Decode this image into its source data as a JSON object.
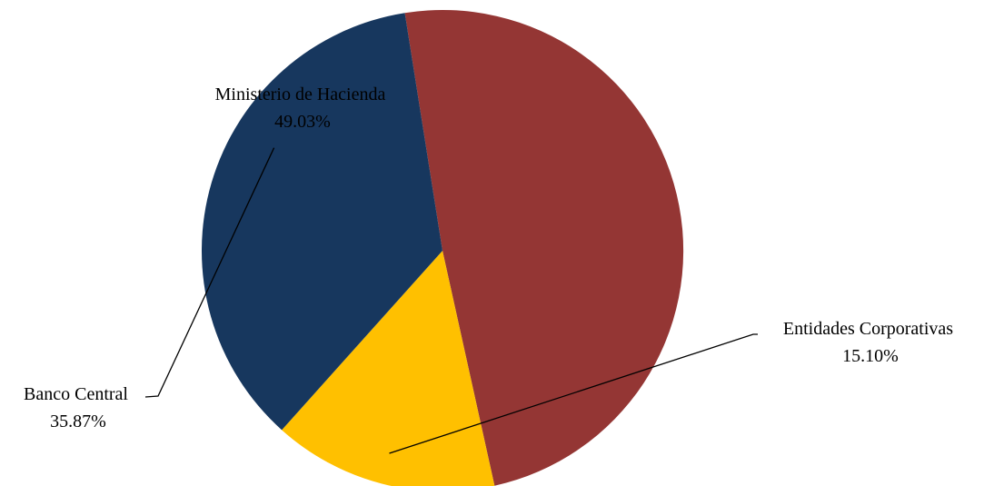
{
  "chart_data": {
    "type": "pie",
    "title": "",
    "slices": [
      {
        "label": "Ministerio de Hacienda",
        "value": 49.03,
        "value_text": "49.03%",
        "color": "#943634"
      },
      {
        "label": "Entidades Corporativas",
        "value": 15.1,
        "value_text": "15.10%",
        "color": "#FFC000"
      },
      {
        "label": "Banco Central",
        "value": 35.87,
        "value_text": "35.87%",
        "color": "#17375E"
      }
    ],
    "start_angle_deg": 261,
    "direction": "clockwise",
    "legend": "none",
    "labels": "outside-with-leader-lines"
  }
}
